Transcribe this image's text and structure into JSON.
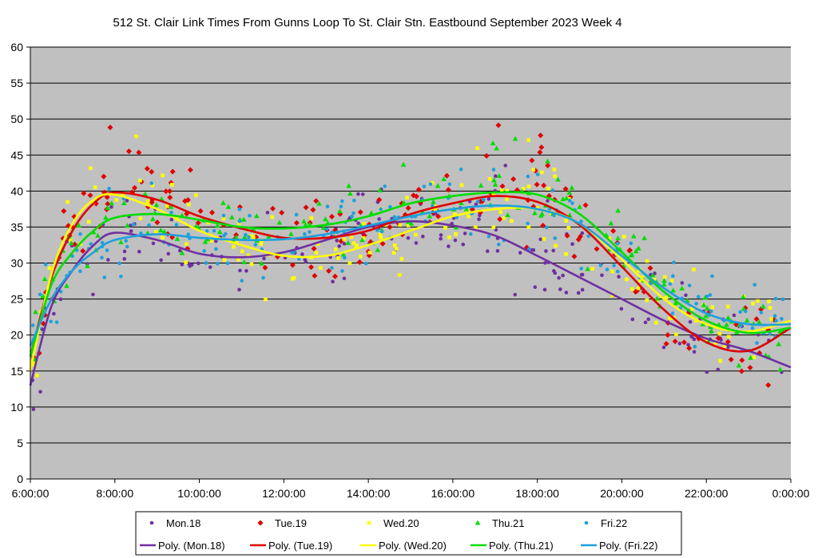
{
  "chart_data": {
    "type": "scatter",
    "title": "512 St. Clair Link Times From Gunns Loop To St. Clair Stn. Eastbound September 2023  Week 4",
    "xlabel": "",
    "ylabel": "",
    "x_unit": "hours since 6:00",
    "xlim": [
      0,
      18
    ],
    "ylim": [
      0,
      60
    ],
    "y_ticks": [
      0,
      5,
      10,
      15,
      20,
      25,
      30,
      35,
      40,
      45,
      50,
      55,
      60
    ],
    "x_ticks": [
      0,
      2,
      4,
      6,
      8,
      10,
      12,
      14,
      16,
      18
    ],
    "x_tick_labels": [
      "6:00:00",
      "8:00:00",
      "10:00:00",
      "12:00:00",
      "14:00:00",
      "16:00:00",
      "18:00:00",
      "20:00:00",
      "22:00:00",
      "0:00:00"
    ],
    "grid": "horizontal",
    "legend_position": "bottom",
    "series": [
      {
        "name": "Mon.18",
        "marker": "circle",
        "color": "#7030a0",
        "trend_name": "Poly. (Mon.18)",
        "trend_points": [
          [
            0,
            13
          ],
          [
            0.5,
            24
          ],
          [
            1,
            29
          ],
          [
            1.5,
            32.5
          ],
          [
            2,
            34.2
          ],
          [
            3,
            33.2
          ],
          [
            4,
            31.3
          ],
          [
            5,
            30.8
          ],
          [
            6,
            31.5
          ],
          [
            7,
            33.2
          ],
          [
            8,
            35
          ],
          [
            9,
            35.8
          ],
          [
            10,
            35.2
          ],
          [
            11,
            33.8
          ],
          [
            12,
            31
          ],
          [
            13,
            28
          ],
          [
            14,
            25
          ],
          [
            15,
            22
          ],
          [
            16,
            19.5
          ],
          [
            17,
            17.8
          ],
          [
            18,
            15.5
          ]
        ]
      },
      {
        "name": "Tue.19",
        "marker": "diamond",
        "color": "#e00000",
        "trend_name": "Poly. (Tue.19)",
        "trend_points": [
          [
            0,
            17
          ],
          [
            0.5,
            28
          ],
          [
            1,
            34.5
          ],
          [
            1.5,
            38.3
          ],
          [
            2,
            39.8
          ],
          [
            3,
            38.8
          ],
          [
            4,
            36.5
          ],
          [
            5,
            34.8
          ],
          [
            6,
            33.5
          ],
          [
            7,
            33.5
          ],
          [
            8,
            34.5
          ],
          [
            9,
            36.8
          ],
          [
            10,
            38.3
          ],
          [
            11,
            39.3
          ],
          [
            12,
            38.5
          ],
          [
            13,
            35.3
          ],
          [
            14,
            29.5
          ],
          [
            15,
            23.5
          ],
          [
            16,
            19
          ],
          [
            17,
            17.8
          ],
          [
            18,
            21
          ]
        ]
      },
      {
        "name": "Wed.20",
        "marker": "square",
        "color": "#ffff00",
        "trend_name": "Poly. (Wed.20)",
        "trend_points": [
          [
            0,
            15
          ],
          [
            0.5,
            28.5
          ],
          [
            1,
            35.5
          ],
          [
            1.5,
            38.8
          ],
          [
            2,
            39.5
          ],
          [
            3,
            37.5
          ],
          [
            4,
            34.5
          ],
          [
            5,
            32.5
          ],
          [
            6,
            31
          ],
          [
            7,
            31
          ],
          [
            8,
            32.5
          ],
          [
            9,
            34.5
          ],
          [
            10,
            36.5
          ],
          [
            11,
            37.5
          ],
          [
            12,
            37.5
          ],
          [
            13,
            35.5
          ],
          [
            14,
            30.5
          ],
          [
            15,
            25
          ],
          [
            16,
            21.5
          ],
          [
            17,
            20.5
          ],
          [
            18,
            22
          ]
        ]
      },
      {
        "name": "Thu.21",
        "marker": "triangle",
        "color": "#00dd00",
        "trend_name": "Poly. (Thu.21)",
        "trend_points": [
          [
            0,
            17
          ],
          [
            0.5,
            27
          ],
          [
            1,
            31.5
          ],
          [
            1.5,
            34.5
          ],
          [
            2,
            36.3
          ],
          [
            3,
            36.8
          ],
          [
            4,
            36
          ],
          [
            5,
            35
          ],
          [
            6,
            34.8
          ],
          [
            7,
            35.3
          ],
          [
            8,
            36.5
          ],
          [
            9,
            38.3
          ],
          [
            10,
            39.3
          ],
          [
            11,
            39.8
          ],
          [
            12,
            39.5
          ],
          [
            13,
            36.8
          ],
          [
            14,
            31.5
          ],
          [
            15,
            26
          ],
          [
            16,
            22
          ],
          [
            17,
            20.3
          ],
          [
            18,
            21
          ]
        ]
      },
      {
        "name": "Fri.22",
        "marker": "circle",
        "color": "#1ea0dc",
        "trend_name": "Poly. (Fri.22)",
        "trend_points": [
          [
            0,
            18.5
          ],
          [
            0.5,
            25
          ],
          [
            1,
            29
          ],
          [
            1.5,
            31.5
          ],
          [
            2,
            33.2
          ],
          [
            3,
            34
          ],
          [
            4,
            33.5
          ],
          [
            5,
            33.2
          ],
          [
            6,
            33.3
          ],
          [
            7,
            34
          ],
          [
            8,
            35.2
          ],
          [
            9,
            36.5
          ],
          [
            10,
            37.5
          ],
          [
            11,
            38
          ],
          [
            12,
            37.5
          ],
          [
            13,
            35.5
          ],
          [
            14,
            31
          ],
          [
            15,
            26.5
          ],
          [
            16,
            23
          ],
          [
            17,
            21.5
          ],
          [
            18,
            21.5
          ]
        ]
      }
    ]
  }
}
